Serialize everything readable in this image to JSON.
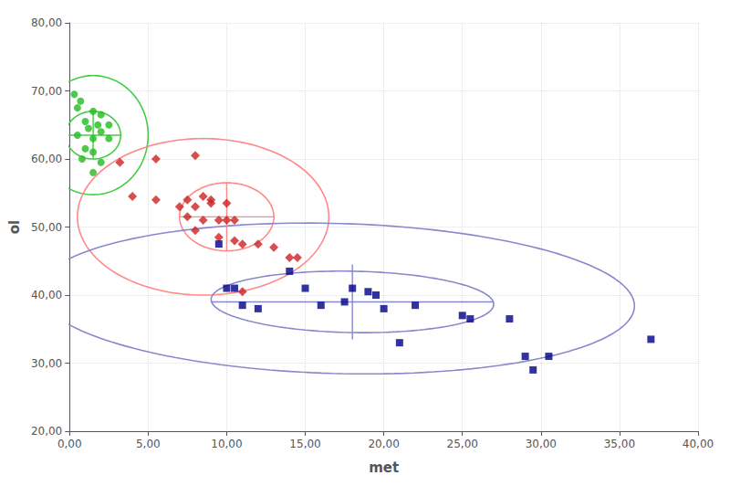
{
  "chart_data": {
    "type": "scatter",
    "xlabel": "met",
    "ylabel": "ol",
    "xlim": [
      0,
      40
    ],
    "ylim": [
      20,
      80
    ],
    "xticks": [
      {
        "value": 0,
        "label": "0,00"
      },
      {
        "value": 5,
        "label": "5,00"
      },
      {
        "value": 10,
        "label": "10,00"
      },
      {
        "value": 15,
        "label": "15,00"
      },
      {
        "value": 20,
        "label": "20,00"
      },
      {
        "value": 25,
        "label": "25,00"
      },
      {
        "value": 30,
        "label": "30,00"
      },
      {
        "value": 35,
        "label": "35,00"
      },
      {
        "value": 40,
        "label": "40,00"
      }
    ],
    "yticks": [
      {
        "value": 20,
        "label": "20,00"
      },
      {
        "value": 30,
        "label": "30,00"
      },
      {
        "value": 40,
        "label": "40,00"
      },
      {
        "value": 50,
        "label": "50,00"
      },
      {
        "value": 60,
        "label": "60,00"
      },
      {
        "value": 70,
        "label": "70,00"
      },
      {
        "value": 80,
        "label": "80,00"
      }
    ],
    "grid": true,
    "series": [
      {
        "color": "#22BB22",
        "marker": "circle",
        "values": [
          [
            0.3,
            69.5
          ],
          [
            0.7,
            68.5
          ],
          [
            0.5,
            67.5
          ],
          [
            1.5,
            67.0
          ],
          [
            2.0,
            66.5
          ],
          [
            1.0,
            65.5
          ],
          [
            1.8,
            65.0
          ],
          [
            2.5,
            65.0
          ],
          [
            1.2,
            64.5
          ],
          [
            2.0,
            64.0
          ],
          [
            0.5,
            63.5
          ],
          [
            1.5,
            63.0
          ],
          [
            2.5,
            63.0
          ],
          [
            1.0,
            61.5
          ],
          [
            1.5,
            61.0
          ],
          [
            0.8,
            60.0
          ],
          [
            2.0,
            59.5
          ],
          [
            1.5,
            58.0
          ]
        ]
      },
      {
        "color": "#CC2222",
        "marker": "diamond",
        "values": [
          [
            3.2,
            59.5
          ],
          [
            5.5,
            60.0
          ],
          [
            8.0,
            60.5
          ],
          [
            4.0,
            54.5
          ],
          [
            5.5,
            54.0
          ],
          [
            7.5,
            54.0
          ],
          [
            8.5,
            54.5
          ],
          [
            9.0,
            54.0
          ],
          [
            7.0,
            53.0
          ],
          [
            8.0,
            53.0
          ],
          [
            9.0,
            53.5
          ],
          [
            10.0,
            53.5
          ],
          [
            7.5,
            51.5
          ],
          [
            8.5,
            51.0
          ],
          [
            9.5,
            51.0
          ],
          [
            10.0,
            51.0
          ],
          [
            10.5,
            51.0
          ],
          [
            8.0,
            49.5
          ],
          [
            9.5,
            48.5
          ],
          [
            10.5,
            48.0
          ],
          [
            11.0,
            47.5
          ],
          [
            12.0,
            47.5
          ],
          [
            13.0,
            47.0
          ],
          [
            14.0,
            45.5
          ],
          [
            11.0,
            40.5
          ],
          [
            14.5,
            45.5
          ]
        ]
      },
      {
        "color": "#000088",
        "marker": "square",
        "values": [
          [
            9.5,
            47.5
          ],
          [
            10.0,
            41.0
          ],
          [
            10.5,
            41.0
          ],
          [
            11.0,
            38.5
          ],
          [
            12.0,
            38.0
          ],
          [
            14.0,
            43.5
          ],
          [
            15.0,
            41.0
          ],
          [
            16.0,
            38.5
          ],
          [
            17.5,
            39.0
          ],
          [
            18.0,
            41.0
          ],
          [
            19.0,
            40.5
          ],
          [
            19.5,
            40.0
          ],
          [
            20.0,
            38.0
          ],
          [
            21.0,
            33.0
          ],
          [
            22.0,
            38.5
          ],
          [
            25.0,
            37.0
          ],
          [
            25.5,
            36.5
          ],
          [
            28.0,
            36.5
          ],
          [
            29.0,
            31.0
          ],
          [
            29.5,
            29.0
          ],
          [
            30.5,
            31.0
          ],
          [
            37.0,
            33.5
          ]
        ]
      }
    ],
    "ellipses": [
      {
        "cx": 1.5,
        "cy": 63.5,
        "width": 7.0,
        "height": 17.5,
        "angle": 0,
        "color": "#44CC44"
      },
      {
        "cx": 1.5,
        "cy": 63.5,
        "width": 3.5,
        "height": 7.0,
        "angle": 0,
        "color": "#44CC44"
      },
      {
        "cx": 8.5,
        "cy": 51.5,
        "width": 16.0,
        "height": 23.0,
        "angle": 0,
        "color": "#FF8888"
      },
      {
        "cx": 10.0,
        "cy": 51.5,
        "width": 6.0,
        "height": 10.0,
        "angle": 0,
        "color": "#FF8888"
      },
      {
        "cx": 17.0,
        "cy": 39.5,
        "width": 38.0,
        "height": 22.0,
        "angle": -5,
        "color": "#8888CC"
      },
      {
        "cx": 18.0,
        "cy": 39.0,
        "width": 18.0,
        "height": 9.0,
        "angle": -3,
        "color": "#8888CC"
      }
    ],
    "crosshairs": [
      {
        "cx": 1.5,
        "cy": 63.5,
        "dx": 1.8,
        "dy": 3.5,
        "color": "#44CC44"
      },
      {
        "cx": 10.0,
        "cy": 51.5,
        "dx": 3.0,
        "dy": 5.0,
        "color": "#FF8888"
      },
      {
        "cx": 18.0,
        "cy": 39.0,
        "dx": 9.0,
        "dy": 5.5,
        "color": "#8888CC"
      }
    ]
  }
}
